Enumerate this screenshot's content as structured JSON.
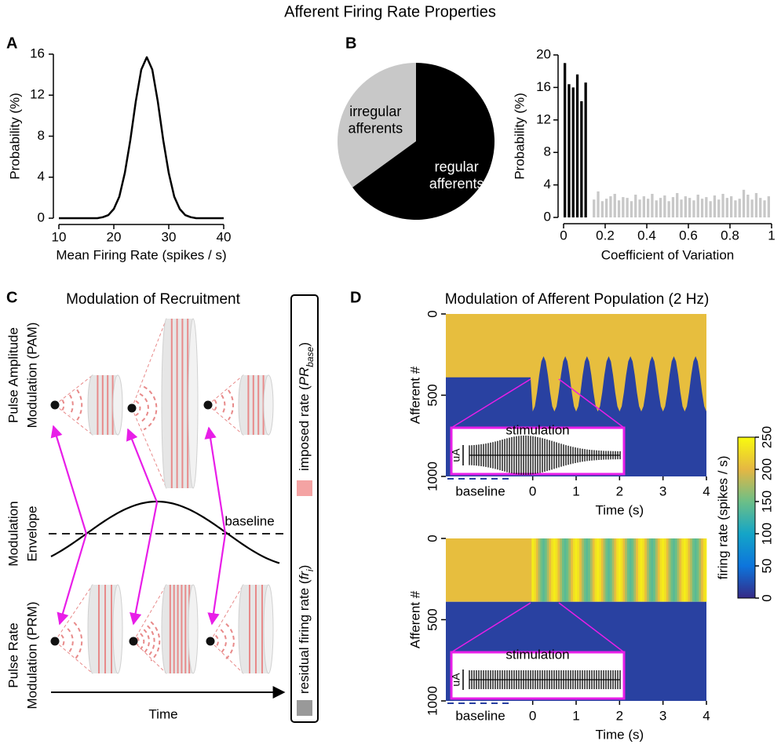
{
  "title": "Afferent Firing Rate Properties",
  "chart_data": [
    {
      "type": "line",
      "panel": "A",
      "x_label": "Mean Firing Rate (spikes / s)",
      "y_label": "Probability (%)",
      "color": "#000000",
      "x": [
        10,
        11,
        12,
        13,
        14,
        15,
        16,
        17,
        18,
        19,
        20,
        21,
        22,
        23,
        24,
        25,
        26,
        27,
        28,
        29,
        30,
        31,
        32,
        33,
        34,
        35,
        36,
        37,
        38,
        39,
        40
      ],
      "values": [
        0,
        0,
        0,
        0,
        0,
        0,
        0,
        0,
        0.1,
        0.3,
        0.9,
        2.1,
        4.4,
        7.6,
        11.4,
        14.5,
        15.7,
        14.5,
        11.4,
        7.6,
        4.4,
        2.1,
        0.9,
        0.3,
        0.1,
        0,
        0,
        0,
        0,
        0,
        0
      ],
      "xlim": [
        10,
        40
      ],
      "ylim": [
        0,
        16
      ],
      "xticks": [
        10,
        20,
        30,
        40
      ],
      "yticks": [
        0,
        4,
        8,
        12,
        16
      ]
    },
    {
      "type": "pie",
      "panel": "B",
      "categories": [
        "irregular afferents",
        "regular afferents"
      ],
      "values": [
        35,
        65
      ],
      "colors": [
        "#c8c8c8",
        "#000000"
      ],
      "label_colors": [
        "#000000",
        "#ffffff"
      ]
    },
    {
      "type": "histogram",
      "x_label": "Coefficient of Variation",
      "y_label": "Probability (%)",
      "series": [
        {
          "color": "#000000",
          "bins": [
            0,
            0.02,
            0.04,
            0.06,
            0.08,
            0.1,
            0.12
          ],
          "counts": [
            19,
            16.4,
            16,
            17.6,
            14.3,
            16.6
          ]
        },
        {
          "color": "#c8c8c8",
          "bins": [
            0.14,
            0.16,
            0.18,
            0.2,
            0.22,
            0.24,
            0.26,
            0.28,
            0.3,
            0.32,
            0.34,
            0.36,
            0.38,
            0.4,
            0.42,
            0.44,
            0.46,
            0.48,
            0.5,
            0.52,
            0.54,
            0.56,
            0.58,
            0.6,
            0.62,
            0.64,
            0.66,
            0.68,
            0.7,
            0.72,
            0.74,
            0.76,
            0.78,
            0.8,
            0.82,
            0.84,
            0.86,
            0.88,
            0.9,
            0.92,
            0.94,
            0.96,
            0.98,
            1
          ],
          "counts": [
            2.2,
            3.2,
            2.0,
            2.3,
            2.6,
            2.9,
            2.1,
            2.5,
            2.4,
            2.0,
            2.8,
            2.2,
            2.6,
            2.3,
            2.9,
            2.1,
            2.4,
            2.7,
            2.0,
            2.5,
            3.0,
            2.2,
            2.6,
            2.4,
            2.1,
            2.8,
            2.3,
            2.5,
            2.0,
            2.7,
            2.2,
            2.9,
            2.4,
            2.6,
            2.1,
            2.3,
            3.4,
            2.8,
            2.2,
            3.0,
            2.4,
            2.1,
            2.6
          ]
        }
      ],
      "xlim": [
        0,
        1
      ],
      "ylim": [
        0,
        20
      ],
      "xticks": [
        0,
        0.2,
        0.4,
        0.6,
        0.8,
        1
      ],
      "yticks": [
        0,
        4,
        8,
        12,
        16,
        20
      ]
    },
    {
      "type": "heatmap",
      "panel": "D",
      "title": "Modulation of Afferent Population (2 Hz)",
      "x_label": "Time (s)",
      "y_label": "Afferent #",
      "x": [
        -2,
        -0.05,
        0,
        0.05,
        0.1,
        0.15,
        0.2,
        0.25,
        0.3,
        0.35,
        0.4,
        0.45,
        0.5,
        0.55,
        0.6,
        0.65,
        0.7,
        0.75,
        0.8,
        0.85,
        0.9,
        0.95,
        1,
        1.05,
        1.1,
        1.15,
        1.2,
        1.25,
        1.3,
        1.35,
        1.4,
        1.45,
        1.5,
        1.55,
        1.6,
        1.65,
        1.7,
        1.75,
        1.8,
        1.85,
        1.9,
        1.95,
        2,
        2.05,
        2.1,
        2.15,
        2.2,
        2.25,
        2.3,
        2.35,
        2.4,
        2.45,
        2.5,
        2.55,
        2.6,
        2.65,
        2.7,
        2.75,
        2.8,
        2.85,
        2.9,
        2.95,
        3,
        3.05,
        3.1,
        3.15,
        3.2,
        3.25,
        3.3,
        3.35,
        3.4,
        3.45,
        3.5,
        3.55,
        3.6,
        3.65,
        3.7,
        3.75,
        3.8,
        3.85,
        3.9,
        3.95,
        4
      ],
      "boundary": [
        390,
        390,
        600,
        568,
        483,
        377,
        292,
        260,
        292,
        377,
        483,
        568,
        600,
        568,
        483,
        377,
        292,
        260,
        292,
        377,
        483,
        568,
        600,
        568,
        483,
        377,
        292,
        260,
        292,
        377,
        483,
        568,
        600,
        568,
        483,
        377,
        292,
        260,
        292,
        377,
        483,
        568,
        600,
        568,
        483,
        377,
        292,
        260,
        292,
        377,
        483,
        568,
        600,
        568,
        483,
        377,
        292,
        260,
        292,
        377,
        483,
        568,
        600,
        568,
        483,
        377,
        292,
        260,
        292,
        377,
        483,
        568,
        600,
        568,
        483,
        377,
        292,
        260,
        292,
        377,
        483,
        568,
        600
      ],
      "upper_rate": 205,
      "lower_rate": 15,
      "xlim": [
        -2,
        4
      ],
      "ylim": [
        0,
        1000
      ],
      "y_inverted": true,
      "xticks": [
        0,
        1,
        2,
        3,
        4
      ],
      "yticks": [
        0,
        500,
        1000
      ],
      "inset": {
        "label": "stimulation",
        "unit": "uA",
        "baseline": "baseline"
      }
    },
    {
      "type": "heatmap",
      "x_label": "Time (s)",
      "y_label": "Afferent #",
      "x": [
        -2,
        -0.05,
        0,
        0.05,
        0.1,
        0.15,
        0.2,
        0.25,
        0.3,
        0.35,
        0.4,
        0.45,
        0.5,
        0.55,
        0.6,
        0.65,
        0.7,
        0.75,
        0.8,
        0.85,
        0.9,
        0.95,
        1,
        1.05,
        1.1,
        1.15,
        1.2,
        1.25,
        1.3,
        1.35,
        1.4,
        1.45,
        1.5,
        1.55,
        1.6,
        1.65,
        1.7,
        1.75,
        1.8,
        1.85,
        1.9,
        1.95,
        2,
        2.05,
        2.1,
        2.15,
        2.2,
        2.25,
        2.3,
        2.35,
        2.4,
        2.45,
        2.5,
        2.55,
        2.6,
        2.65,
        2.7,
        2.75,
        2.8,
        2.85,
        2.9,
        2.95,
        3,
        3.05,
        3.1,
        3.15,
        3.2,
        3.25,
        3.3,
        3.35,
        3.4,
        3.45,
        3.5,
        3.55,
        3.6,
        3.65,
        3.7,
        3.75,
        3.8,
        3.85,
        3.9,
        3.95,
        4
      ],
      "boundary": 390,
      "upper_rate": [
        205,
        205,
        240,
        230,
        205,
        175,
        150,
        140,
        150,
        175,
        205,
        230,
        240,
        230,
        205,
        175,
        150,
        140,
        150,
        175,
        205,
        230,
        240,
        230,
        205,
        175,
        150,
        140,
        150,
        175,
        205,
        230,
        240,
        230,
        205,
        175,
        150,
        140,
        150,
        175,
        205,
        230,
        240,
        230,
        205,
        175,
        150,
        140,
        150,
        175,
        205,
        230,
        240,
        230,
        205,
        175,
        150,
        140,
        150,
        175,
        205,
        230,
        240,
        230,
        205,
        175,
        150,
        140,
        150,
        175,
        205,
        230,
        240,
        230,
        205,
        175,
        150,
        140,
        150,
        175,
        205,
        230,
        240
      ],
      "lower_rate": 15,
      "xlim": [
        -2,
        4
      ],
      "ylim": [
        0,
        1000
      ],
      "y_inverted": true,
      "xticks": [
        0,
        1,
        2,
        3,
        4
      ],
      "yticks": [
        0,
        500,
        1000
      ],
      "inset": {
        "label": "stimulation",
        "unit": "uA",
        "baseline": "baseline"
      }
    },
    {
      "type": "colorbar",
      "label": "firing rate (spikes / s)",
      "clim": [
        0,
        250
      ],
      "ticks": [
        0,
        50,
        100,
        150,
        200,
        250
      ],
      "colormap": [
        [
          0,
          "#352a87"
        ],
        [
          50,
          "#0d75dc"
        ],
        [
          100,
          "#14a5c7"
        ],
        [
          150,
          "#6cbf87"
        ],
        [
          200,
          "#e5b743"
        ],
        [
          250,
          "#f9fb0e"
        ]
      ]
    }
  ],
  "diagram": {
    "panel": "C",
    "title": "Modulation of Recruitment",
    "pam_label": [
      "Pulse Amplitude",
      "Modulation (PAM)"
    ],
    "envelope_label": [
      "Modulation",
      "Envelope"
    ],
    "baseline": "baseline",
    "prm_label": [
      "Pulse Rate",
      "Modulation (PRM)"
    ],
    "time_label": "Time",
    "legend": [
      {
        "prefix": "residual firing rate (",
        "symbol": "fr",
        "subscript": "i",
        "suffix": ")",
        "color": "#999999"
      },
      {
        "prefix": "imposed rate (",
        "symbol": "PR",
        "subscript": "base",
        "suffix": ")",
        "color": "#f4a3a3"
      }
    ]
  }
}
